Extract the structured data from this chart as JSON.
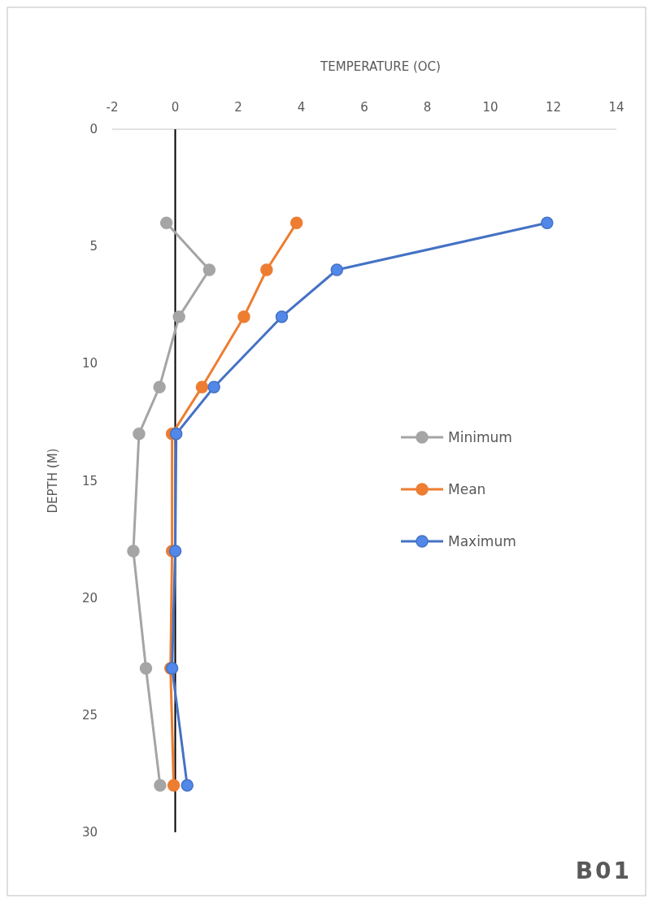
{
  "chart_data": {
    "type": "line",
    "xlabel": "TEMPERATURE (OC)",
    "ylabel": "DEPTH (M)",
    "xlim": [
      -2,
      14
    ],
    "xticks": [
      -2,
      0,
      2,
      4,
      6,
      8,
      10,
      12,
      14
    ],
    "ylim": [
      30,
      0
    ],
    "yticks": [
      0,
      5,
      10,
      15,
      20,
      25,
      30
    ],
    "ref_lines": [
      {
        "axis": "x",
        "value": 0,
        "color": "#000000"
      }
    ],
    "legend": "right",
    "marker": "circle",
    "line_style": "solid",
    "annotations": [
      "B01"
    ],
    "series": [
      {
        "name": "Minimum",
        "color": "#a5a5a5",
        "x": [
          -0.28,
          1.08,
          0.12,
          -0.5,
          -1.15,
          -1.33,
          -0.93,
          -0.48
        ],
        "values": [
          4,
          6,
          8,
          11,
          13,
          18,
          23,
          28
        ]
      },
      {
        "name": "Mean",
        "color": "#ed7d31",
        "x": [
          3.85,
          2.9,
          2.18,
          0.85,
          -0.1,
          -0.1,
          -0.15,
          -0.05
        ],
        "values": [
          4,
          6,
          8,
          11,
          13,
          18,
          23,
          28
        ]
      },
      {
        "name": "Maximum",
        "color": "#4472c4",
        "x": [
          11.8,
          5.13,
          3.38,
          1.23,
          0.03,
          0,
          -0.1,
          0.38
        ],
        "values": [
          4,
          6,
          8,
          11,
          13,
          18,
          23,
          28
        ]
      }
    ]
  }
}
